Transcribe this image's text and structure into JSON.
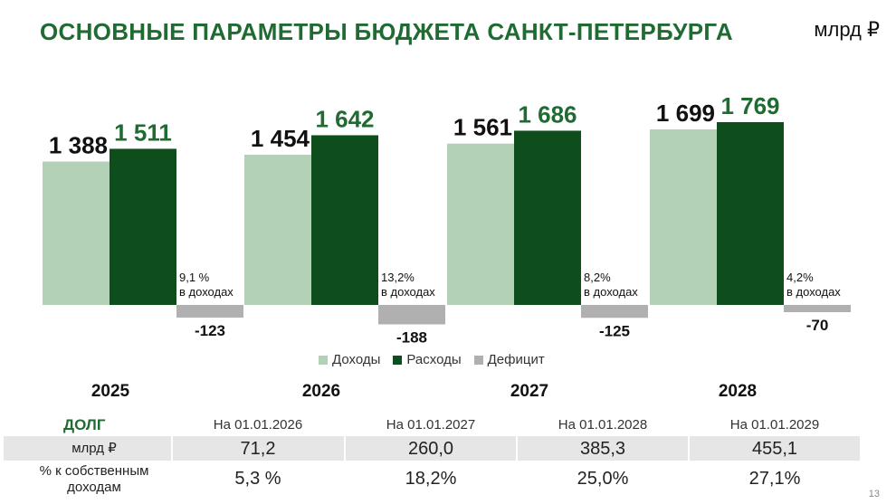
{
  "header": {
    "title": "ОСНОВНЫЕ ПАРАМЕТРЫ БЮДЖЕТА САНКТ-ПЕТЕРБУРГА",
    "unit": "млрд ₽"
  },
  "colors": {
    "income": "#b2d1b6",
    "expense": "#0e4d1c",
    "deficit": "#b0b0b0",
    "title": "#1f6b32"
  },
  "chart_data": {
    "type": "bar",
    "categories": [
      "2025",
      "2026",
      "2027",
      "2028"
    ],
    "series": [
      {
        "name": "Доходы",
        "values": [
          1388,
          1454,
          1561,
          1699
        ],
        "labels": [
          "1 388",
          "1 454",
          "1 561",
          "1 699"
        ]
      },
      {
        "name": "Расходы",
        "values": [
          1511,
          1642,
          1686,
          1769
        ],
        "labels": [
          "1 511",
          "1 642",
          "1 686",
          "1 769"
        ]
      },
      {
        "name": "Дефицит",
        "values": [
          -123,
          -188,
          -125,
          -70
        ],
        "labels": [
          "-123",
          "-188",
          "-125",
          "-70"
        ]
      }
    ],
    "deficit_notes": [
      [
        "9,1 %",
        "в доходах"
      ],
      [
        "13,2%",
        "в доходах"
      ],
      [
        "8,2%",
        "в доходах"
      ],
      [
        "4,2%",
        "в доходах"
      ]
    ],
    "legend_position": "bottom",
    "grid": false
  },
  "legend": [
    "Доходы",
    "Расходы",
    "Дефицит"
  ],
  "years": [
    "2025",
    "2026",
    "2027",
    "2028"
  ],
  "debt": {
    "title": "ДОЛГ",
    "columns": [
      "На 01.01.2026",
      "На 01.01.2027",
      "На 01.01.2028",
      "На 01.01.2029"
    ],
    "rows": [
      {
        "label": "млрд ₽",
        "values": [
          "71,2",
          "260,0",
          "385,3",
          "455,1"
        ]
      },
      {
        "label": "% к собственным доходам",
        "values": [
          "5,3 %",
          "18,2%",
          "25,0%",
          "27,1%"
        ]
      }
    ]
  },
  "page_number": "13"
}
